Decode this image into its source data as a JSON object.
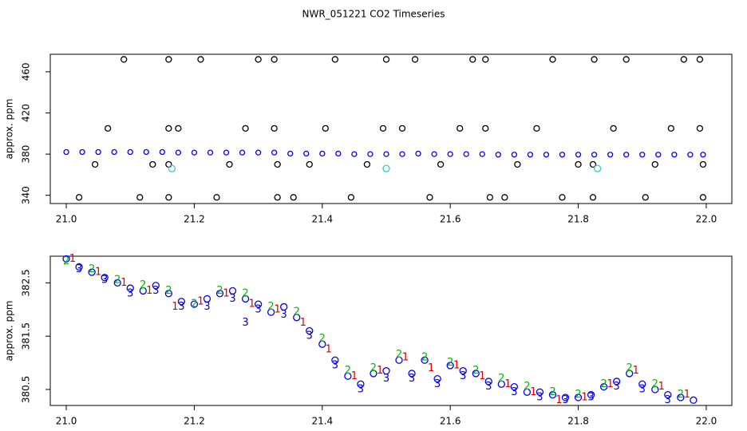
{
  "chart_data": [
    {
      "type": "scatter",
      "title": "NWR_051221  CO2 Timeseries",
      "ylabel": "approx. ppm",
      "xlim": [
        20.975,
        22.04
      ],
      "ylim": [
        332,
        477
      ],
      "xticks": [
        {
          "value": 21,
          "label": "21.0"
        },
        21.2,
        21.4,
        21.6,
        21.8,
        {
          "value": 22,
          "label": "22.0"
        }
      ],
      "yticks": [
        340,
        380,
        420,
        460
      ],
      "series": [
        {
          "color": "#0000ff",
          "marker_size": 3,
          "x": [
            21.0,
            21.025,
            21.05,
            21.075,
            21.1,
            21.125,
            21.15,
            21.175,
            21.2,
            21.225,
            21.25,
            21.275,
            21.3,
            21.325,
            21.35,
            21.375,
            21.4,
            21.425,
            21.45,
            21.475,
            21.5,
            21.525,
            21.55,
            21.575,
            21.6,
            21.625,
            21.65,
            21.675,
            21.7,
            21.725,
            21.75,
            21.775,
            21.8,
            21.825,
            21.85,
            21.875,
            21.9,
            21.925,
            21.95,
            21.975,
            21.995
          ],
          "values": [
            382,
            382,
            382,
            382,
            382,
            382,
            382,
            381.5,
            381.5,
            381.5,
            381.5,
            381.5,
            381.5,
            381.5,
            380.5,
            380.5,
            380.5,
            380.5,
            380,
            380,
            380,
            380,
            380.5,
            380,
            380,
            380,
            380,
            379.5,
            379.5,
            379.5,
            379.5,
            379.5,
            379.5,
            379.5,
            379.5,
            379.5,
            379.5,
            379.5,
            379.5,
            379.5,
            379.5
          ]
        },
        {
          "color": "#000000",
          "marker_size": 3.5,
          "x": [
            21.02,
            21.115,
            21.16,
            21.235,
            21.33,
            21.355,
            21.445,
            21.568,
            21.662,
            21.685,
            21.775,
            21.823,
            21.905,
            21.995,
            21.045,
            21.135,
            21.16,
            21.255,
            21.33,
            21.38,
            21.47,
            21.585,
            21.705,
            21.8,
            21.823,
            21.92,
            21.995,
            21.065,
            21.175,
            21.28,
            21.325,
            21.405,
            21.495,
            21.525,
            21.615,
            21.655,
            21.735,
            21.855,
            21.945,
            21.99,
            21.16,
            21.09,
            21.16,
            21.21,
            21.3,
            21.325,
            21.42,
            21.5,
            21.545,
            21.635,
            21.655,
            21.76,
            21.825,
            21.875,
            21.965,
            21.99
          ],
          "values": [
            338,
            338,
            338,
            338,
            338,
            338,
            338,
            338,
            338,
            338,
            338,
            338,
            338,
            338,
            370,
            370,
            370,
            370,
            370,
            370,
            370,
            370,
            370,
            370,
            370,
            370,
            370,
            405,
            405,
            405,
            405,
            405,
            405,
            405,
            405,
            405,
            405,
            405,
            405,
            405,
            405,
            472,
            472,
            472,
            472,
            472,
            472,
            472,
            472,
            472,
            472,
            472,
            472,
            472,
            472,
            472
          ]
        },
        {
          "color": "#33cccc",
          "marker_size": 4,
          "x": [
            21.165,
            21.5,
            21.83
          ],
          "values": [
            366,
            366,
            366
          ]
        }
      ]
    },
    {
      "type": "scatter",
      "ylabel": "approx. ppm",
      "xlim": [
        20.975,
        22.04
      ],
      "ylim": [
        380.2,
        383.0
      ],
      "xticks": [
        {
          "value": 21,
          "label": "21.0"
        },
        21.2,
        21.4,
        21.6,
        21.8,
        {
          "value": 22,
          "label": "22.0"
        }
      ],
      "yticks": [
        380.5,
        381.5,
        382.5
      ],
      "series": [
        {
          "color": "#0000ff",
          "marker_size": 4,
          "x": [
            21.0,
            21.02,
            21.04,
            21.06,
            21.08,
            21.1,
            21.12,
            21.14,
            21.16,
            21.18,
            21.2,
            21.22,
            21.24,
            21.26,
            21.28,
            21.3,
            21.32,
            21.34,
            21.36,
            21.38,
            21.4,
            21.42,
            21.44,
            21.46,
            21.48,
            21.5,
            21.52,
            21.54,
            21.56,
            21.58,
            21.6,
            21.62,
            21.64,
            21.66,
            21.68,
            21.7,
            21.72,
            21.74,
            21.76,
            21.78,
            21.8,
            21.82,
            21.84,
            21.86,
            21.88,
            21.9,
            21.92,
            21.94,
            21.96,
            21.98
          ],
          "values": [
            382.95,
            382.8,
            382.7,
            382.6,
            382.5,
            382.4,
            382.35,
            382.45,
            382.3,
            382.15,
            382.1,
            382.2,
            382.3,
            382.35,
            382.2,
            382.1,
            381.95,
            382.05,
            381.85,
            381.6,
            381.35,
            381.05,
            380.75,
            380.6,
            380.8,
            380.85,
            381.05,
            380.8,
            381.05,
            380.7,
            380.95,
            380.85,
            380.8,
            380.65,
            380.6,
            380.55,
            380.45,
            380.45,
            380.4,
            380.35,
            380.35,
            380.4,
            380.55,
            380.65,
            380.8,
            380.6,
            380.5,
            380.4,
            380.35,
            380.3
          ]
        },
        {
          "color": "#dd0000",
          "marker": "1",
          "x": [
            21.01,
            21.05,
            21.09,
            21.13,
            21.17,
            21.21,
            21.25,
            21.29,
            21.33,
            21.37,
            21.41,
            21.45,
            21.49,
            21.53,
            21.57,
            21.61,
            21.65,
            21.69,
            21.73,
            21.77,
            21.81,
            21.85,
            21.89,
            21.93,
            21.97
          ],
          "values": [
            382.95,
            382.7,
            382.5,
            382.35,
            382.05,
            382.15,
            382.3,
            382.1,
            382.0,
            381.75,
            381.25,
            380.75,
            380.85,
            381.1,
            380.9,
            380.95,
            380.75,
            380.6,
            380.45,
            380.3,
            380.35,
            380.6,
            380.85,
            380.55,
            380.4
          ]
        },
        {
          "color": "#00bb00",
          "marker": "2",
          "x": [
            21.0,
            21.04,
            21.08,
            21.12,
            21.16,
            21.2,
            21.24,
            21.28,
            21.32,
            21.36,
            21.4,
            21.44,
            21.48,
            21.52,
            21.56,
            21.6,
            21.64,
            21.68,
            21.72,
            21.76,
            21.8,
            21.84,
            21.88,
            21.92,
            21.96
          ],
          "values": [
            382.9,
            382.75,
            382.55,
            382.45,
            382.35,
            382.1,
            382.35,
            382.3,
            382.05,
            381.95,
            381.45,
            380.85,
            380.9,
            381.15,
            381.1,
            381.0,
            380.85,
            380.7,
            380.55,
            380.45,
            380.4,
            380.6,
            380.9,
            380.6,
            380.4
          ]
        },
        {
          "color": "#0000cc",
          "marker": "3",
          "x": [
            21.02,
            21.06,
            21.1,
            21.14,
            21.18,
            21.22,
            21.26,
            21.28,
            21.3,
            21.34,
            21.38,
            21.42,
            21.46,
            21.5,
            21.54,
            21.58,
            21.62,
            21.66,
            21.7,
            21.74,
            21.78,
            21.82,
            21.86,
            21.9,
            21.94
          ],
          "values": [
            382.75,
            382.55,
            382.3,
            382.35,
            382.05,
            382.05,
            382.2,
            381.75,
            382.0,
            381.9,
            381.5,
            380.95,
            380.5,
            380.7,
            380.7,
            380.6,
            380.75,
            380.55,
            380.45,
            380.35,
            380.3,
            380.35,
            380.55,
            380.5,
            380.3
          ]
        }
      ]
    }
  ]
}
